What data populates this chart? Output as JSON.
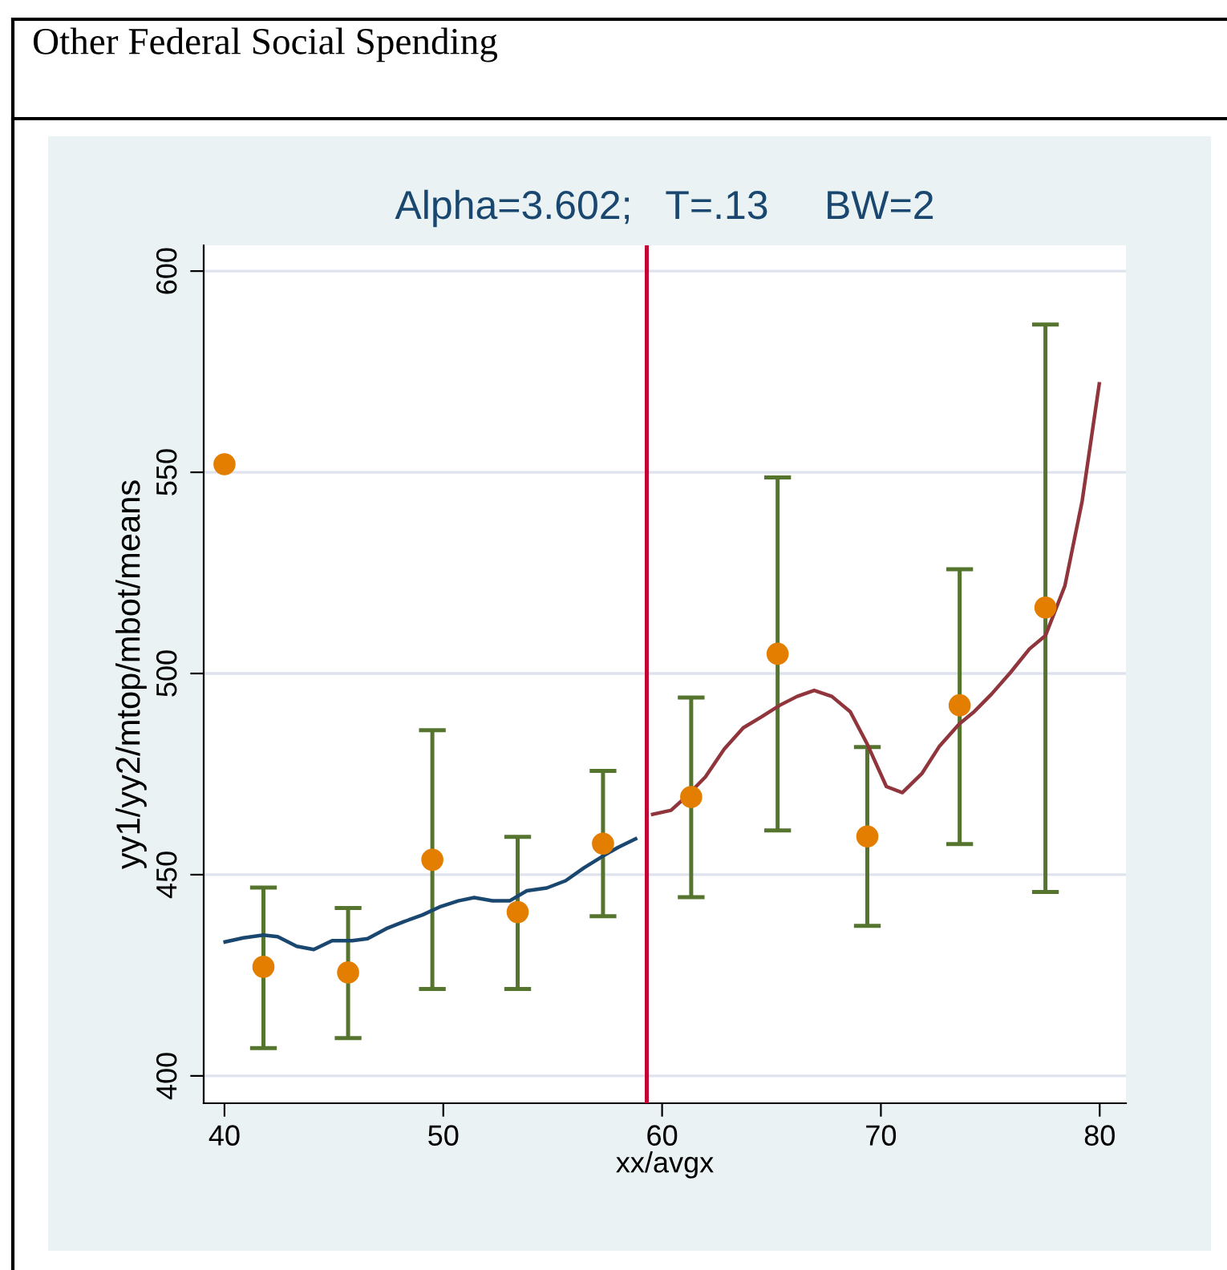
{
  "chart_data": {
    "type": "line",
    "title": "Alpha=3.602;   T=.13     BW=2",
    "subtitle": "Other Federal Social Spending",
    "xlabel": "xx/avgx",
    "ylabel": "yy1/yy2/mtop/mbot/means",
    "xlim": [
      39.05,
      81.2
    ],
    "xticks": [
      40,
      50,
      60,
      70,
      80
    ],
    "ylim": [
      393.2,
      606.4
    ],
    "yticks": [
      400,
      450,
      500,
      550,
      600
    ],
    "grid": "y",
    "legend": false,
    "ref_lines": [
      {
        "axis": "x",
        "value": 59.3,
        "color": "#c10534"
      }
    ],
    "series": [
      {
        "type": "scatter",
        "color": "#e37e00",
        "marker": "circle",
        "x": [
          40.0,
          41.78,
          45.65,
          49.5,
          53.4,
          57.3,
          61.33,
          65.28,
          69.38,
          73.6,
          77.52
        ],
        "values": [
          552,
          427.1,
          425.7,
          453.7,
          440.7,
          457.7,
          469.3,
          504.9,
          459.5,
          492.1,
          516.4
        ],
        "errors": [
          null,
          [
            406.9,
            446.8
          ],
          [
            409.4,
            441.7
          ],
          [
            421.6,
            485.9
          ],
          [
            421.6,
            459.4
          ],
          [
            439.7,
            475.8
          ],
          [
            444.4,
            494.0
          ],
          [
            461.0,
            548.7
          ],
          [
            437.3,
            481.7
          ],
          [
            457.6,
            525.9
          ],
          [
            445.7,
            586.7
          ]
        ]
      },
      {
        "color": "#1a476f",
        "x": [
          40.03,
          40.86,
          41.78,
          42.43,
          43.3,
          44.08,
          44.92,
          45.84,
          46.54,
          47.4,
          48.19,
          49.05,
          49.89,
          50.68,
          51.41,
          52.25,
          53.03,
          53.82,
          54.73,
          55.59,
          56.43,
          57.35,
          58.0,
          58.79
        ],
        "values": [
          433.3,
          434.3,
          435.0,
          434.6,
          432.2,
          431.4,
          433.6,
          433.6,
          434.1,
          436.6,
          438.3,
          440.0,
          442.1,
          443.5,
          444.3,
          443.5,
          443.5,
          446.0,
          446.7,
          448.5,
          451.7,
          454.8,
          456.8,
          458.9
        ]
      },
      {
        "color": "#90353b",
        "x": [
          59.57,
          60.41,
          61.14,
          61.98,
          62.84,
          63.71,
          64.54,
          65.38,
          66.17,
          66.95,
          67.76,
          68.6,
          69.38,
          70.25,
          70.98,
          71.87,
          72.66,
          73.57,
          74.28,
          75.06,
          75.93,
          76.79,
          77.52,
          78.41,
          79.2,
          79.98
        ],
        "values": [
          465.0,
          466.0,
          469.6,
          474.3,
          481.2,
          486.5,
          489.2,
          492.1,
          494.3,
          495.8,
          494.3,
          490.5,
          482.4,
          471.9,
          470.4,
          475.1,
          481.8,
          487.4,
          490.6,
          494.9,
          500.3,
          506.1,
          509.4,
          521.8,
          542.9,
          572.0
        ]
      }
    ]
  }
}
